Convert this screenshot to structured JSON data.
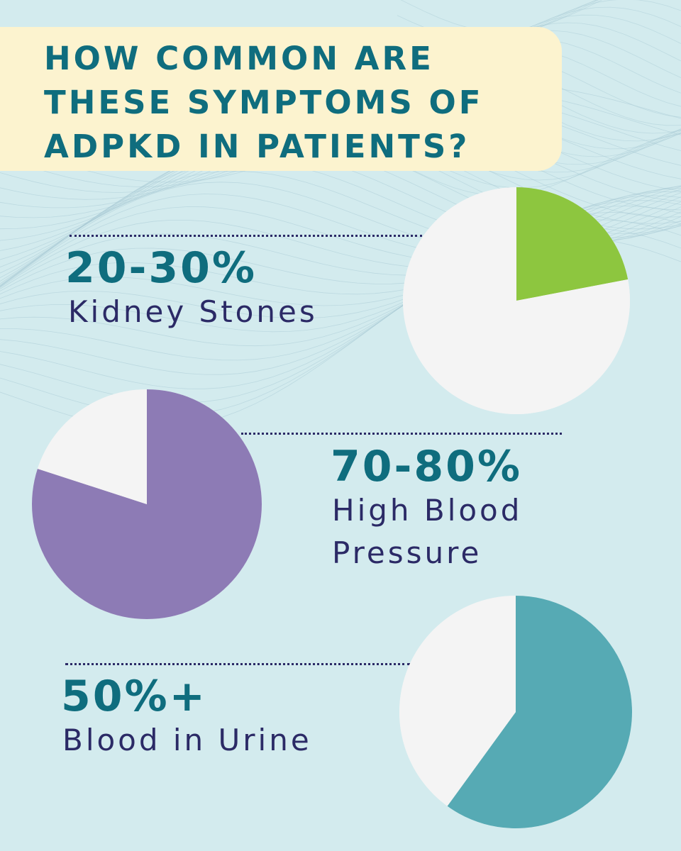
{
  "title": "HOW COMMON ARE\nTHESE SYMPTOMS OF\nADPKD IN PATIENTS?",
  "colors": {
    "background": "#d3ebee",
    "title_band": "#fcf3cf",
    "title_text": "#0f6d7e",
    "label_text": "#2b2a66",
    "pie_base": "#f4f4f4"
  },
  "chart_data": [
    {
      "type": "pie",
      "percent_label": "20-30%",
      "label": "Kidney Stones",
      "slices": [
        {
          "value": 22,
          "color": "#8dc63f",
          "highlight": true
        },
        {
          "value": 78,
          "color": "#f4f4f4"
        }
      ]
    },
    {
      "type": "pie",
      "percent_label": "70-80%",
      "label": "High Blood\nPressure",
      "slices": [
        {
          "value": 80,
          "color": "#8d7bb5",
          "highlight": true
        },
        {
          "value": 20,
          "color": "#f4f4f4"
        }
      ]
    },
    {
      "type": "pie",
      "percent_label": "50%+",
      "label": "Blood in Urine",
      "slices": [
        {
          "value": 60,
          "color": "#56aab4",
          "highlight": true
        },
        {
          "value": 40,
          "color": "#f4f4f4"
        }
      ]
    }
  ]
}
